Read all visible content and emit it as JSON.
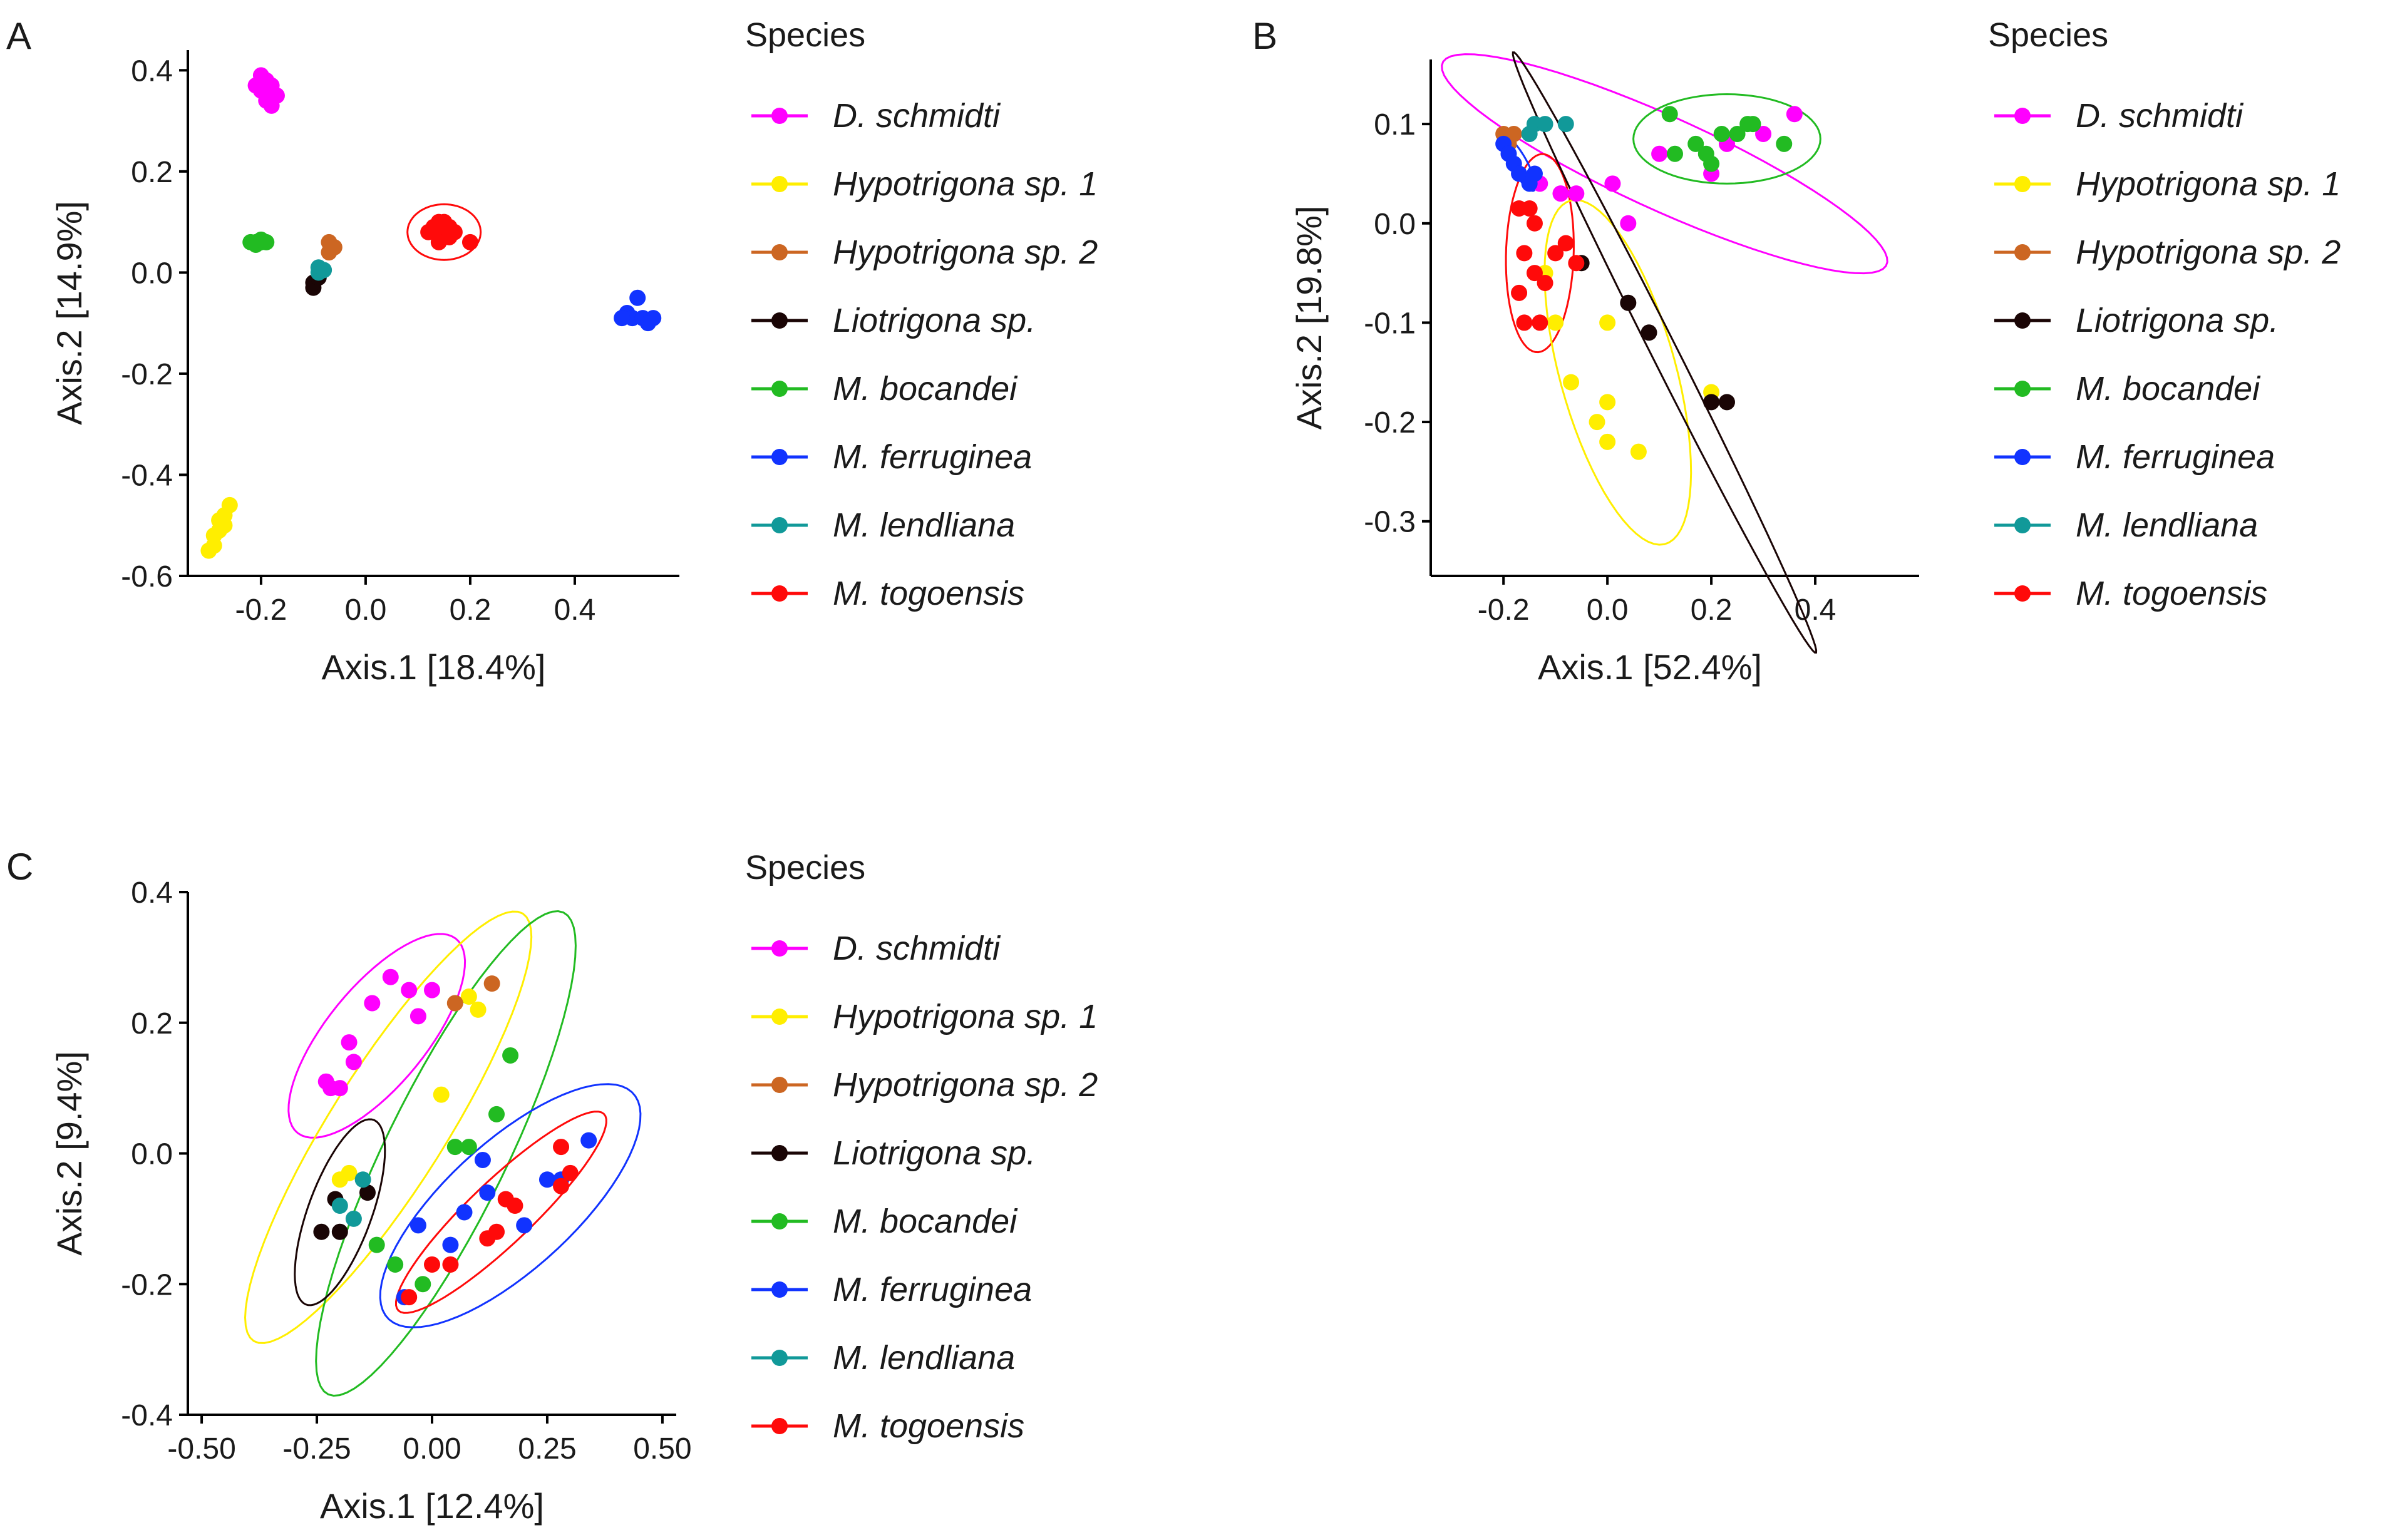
{
  "legend": {
    "title": "Species",
    "entries": [
      {
        "name": "D. schmidti",
        "color": "#ff00ff"
      },
      {
        "name": "Hypotrigona sp. 1",
        "color": "#ffee00"
      },
      {
        "name": "Hypotrigona sp. 2",
        "color": "#cc6622"
      },
      {
        "name": "Liotrigona sp.",
        "color": "#1a0505"
      },
      {
        "name": "M. bocandei",
        "color": "#22bb22"
      },
      {
        "name": "M. ferruginea",
        "color": "#1133ff"
      },
      {
        "name": "M. lendliana",
        "color": "#119999"
      },
      {
        "name": "M. togoensis",
        "color": "#ff0a0a"
      }
    ]
  },
  "chart_data": [
    {
      "panel": "A",
      "type": "scatter",
      "xlabel": "Axis.1   [18.4%]",
      "ylabel": "Axis.2   [14.9%]",
      "xlim": [
        -0.34,
        0.6
      ],
      "ylim": [
        -0.6,
        0.44
      ],
      "xticks": [
        "-0.2",
        "0.0",
        "0.2",
        "0.4"
      ],
      "xtick_values": [
        -0.2,
        0.0,
        0.2,
        0.4
      ],
      "yticks": [
        "-0.6",
        "-0.4",
        "-0.2",
        "0.0",
        "0.2",
        "0.4"
      ],
      "ytick_values": [
        -0.6,
        -0.4,
        -0.2,
        0.0,
        0.2,
        0.4
      ],
      "series": [
        {
          "name": "D. schmidti",
          "points": [
            [
              -0.2,
              0.39
            ],
            [
              -0.19,
              0.38
            ],
            [
              -0.21,
              0.37
            ],
            [
              -0.18,
              0.37
            ],
            [
              -0.19,
              0.36
            ],
            [
              -0.2,
              0.36
            ],
            [
              -0.18,
              0.35
            ],
            [
              -0.19,
              0.34
            ],
            [
              -0.17,
              0.35
            ],
            [
              -0.18,
              0.33
            ]
          ]
        },
        {
          "name": "Hypotrigona sp. 1",
          "points": [
            [
              -0.26,
              -0.46
            ],
            [
              -0.27,
              -0.48
            ],
            [
              -0.27,
              -0.5
            ],
            [
              -0.28,
              -0.51
            ],
            [
              -0.29,
              -0.52
            ],
            [
              -0.29,
              -0.54
            ],
            [
              -0.28,
              -0.49
            ],
            [
              -0.3,
              -0.55
            ]
          ]
        },
        {
          "name": "Hypotrigona sp. 2",
          "points": [
            [
              -0.07,
              0.06
            ],
            [
              -0.07,
              0.04
            ],
            [
              -0.06,
              0.05
            ]
          ]
        },
        {
          "name": "Liotrigona sp.",
          "points": [
            [
              -0.1,
              -0.03
            ],
            [
              -0.1,
              -0.02
            ],
            [
              -0.09,
              -0.01
            ]
          ]
        },
        {
          "name": "M. bocandei",
          "points": [
            [
              -0.22,
              0.06
            ],
            [
              -0.21,
              0.06
            ],
            [
              -0.2,
              0.06
            ],
            [
              -0.19,
              0.06
            ],
            [
              -0.21,
              0.055
            ],
            [
              -0.2,
              0.065
            ]
          ]
        },
        {
          "name": "M. ferruginea",
          "points": [
            [
              0.52,
              -0.05
            ],
            [
              0.5,
              -0.08
            ],
            [
              0.51,
              -0.09
            ],
            [
              0.53,
              -0.09
            ],
            [
              0.55,
              -0.09
            ],
            [
              0.54,
              -0.1
            ],
            [
              0.49,
              -0.09
            ]
          ]
        },
        {
          "name": "M. lendliana",
          "points": [
            [
              -0.09,
              0.0
            ],
            [
              -0.09,
              0.01
            ],
            [
              -0.08,
              0.005
            ]
          ]
        },
        {
          "name": "M. togoensis",
          "points": [
            [
              0.13,
              0.09
            ],
            [
              0.14,
              0.1
            ],
            [
              0.15,
              0.08
            ],
            [
              0.16,
              0.07
            ],
            [
              0.14,
              0.06
            ],
            [
              0.17,
              0.08
            ],
            [
              0.2,
              0.06
            ],
            [
              0.12,
              0.08
            ],
            [
              0.15,
              0.1
            ],
            [
              0.16,
              0.09
            ]
          ]
        }
      ],
      "ellipses": [
        {
          "series": "M. togoensis",
          "cx": 0.15,
          "cy": 0.08,
          "rx": 0.07,
          "ry": 0.055,
          "angle": 0
        }
      ]
    },
    {
      "panel": "B",
      "type": "scatter",
      "xlabel": "Axis.1   [52.4%]",
      "ylabel": "Axis.2   [19.8%]",
      "xlim": [
        -0.34,
        0.6
      ],
      "ylim": [
        -0.355,
        0.165
      ],
      "xticks": [
        "-0.2",
        "0.0",
        "0.2",
        "0.4"
      ],
      "xtick_values": [
        -0.2,
        0.0,
        0.2,
        0.4
      ],
      "yticks": [
        "-0.3",
        "-0.2",
        "-0.1",
        "0.0",
        "0.1"
      ],
      "ytick_values": [
        -0.3,
        -0.2,
        -0.1,
        0.0,
        0.1
      ],
      "series": [
        {
          "name": "D. schmidti",
          "points": [
            [
              -0.13,
              0.04
            ],
            [
              -0.09,
              0.03
            ],
            [
              -0.06,
              0.03
            ],
            [
              0.01,
              0.04
            ],
            [
              0.04,
              0.0
            ],
            [
              0.1,
              0.07
            ],
            [
              0.2,
              0.05
            ],
            [
              0.23,
              0.08
            ],
            [
              0.3,
              0.09
            ],
            [
              0.36,
              0.11
            ]
          ]
        },
        {
          "name": "Hypotrigona sp. 1",
          "points": [
            [
              -0.12,
              -0.05
            ],
            [
              -0.1,
              -0.1
            ],
            [
              -0.07,
              -0.16
            ],
            [
              -0.02,
              -0.2
            ],
            [
              0.0,
              -0.22
            ],
            [
              0.0,
              -0.18
            ],
            [
              0.06,
              -0.23
            ],
            [
              0.0,
              -0.1
            ],
            [
              0.2,
              -0.17
            ]
          ]
        },
        {
          "name": "Hypotrigona sp. 2",
          "points": [
            [
              -0.2,
              0.09
            ],
            [
              -0.18,
              0.09
            ],
            [
              -0.19,
              0.08
            ]
          ]
        },
        {
          "name": "Liotrigona sp.",
          "points": [
            [
              0.04,
              -0.08
            ],
            [
              0.08,
              -0.11
            ],
            [
              0.2,
              -0.18
            ],
            [
              0.23,
              -0.18
            ],
            [
              -0.05,
              -0.04
            ]
          ]
        },
        {
          "name": "M. bocandei",
          "points": [
            [
              0.12,
              0.11
            ],
            [
              0.13,
              0.07
            ],
            [
              0.17,
              0.08
            ],
            [
              0.19,
              0.07
            ],
            [
              0.2,
              0.06
            ],
            [
              0.22,
              0.09
            ],
            [
              0.25,
              0.09
            ],
            [
              0.27,
              0.1
            ],
            [
              0.28,
              0.1
            ],
            [
              0.34,
              0.08
            ]
          ]
        },
        {
          "name": "M. ferruginea",
          "points": [
            [
              -0.2,
              0.08
            ],
            [
              -0.19,
              0.07
            ],
            [
              -0.18,
              0.06
            ],
            [
              -0.17,
              0.05
            ],
            [
              -0.15,
              0.04
            ],
            [
              -0.14,
              0.05
            ]
          ]
        },
        {
          "name": "M. lendliana",
          "points": [
            [
              -0.14,
              0.1
            ],
            [
              -0.12,
              0.1
            ],
            [
              -0.08,
              0.1
            ],
            [
              -0.15,
              0.09
            ]
          ]
        },
        {
          "name": "M. togoensis",
          "points": [
            [
              -0.17,
              0.015
            ],
            [
              -0.15,
              0.015
            ],
            [
              -0.14,
              0.0
            ],
            [
              -0.16,
              -0.03
            ],
            [
              -0.14,
              -0.05
            ],
            [
              -0.17,
              -0.07
            ],
            [
              -0.16,
              -0.1
            ],
            [
              -0.13,
              -0.1
            ],
            [
              -0.08,
              -0.02
            ],
            [
              -0.06,
              -0.04
            ],
            [
              -0.1,
              -0.03
            ],
            [
              -0.12,
              -0.06
            ]
          ]
        }
      ],
      "ellipses": [
        {
          "series": "D. schmidti",
          "cx": 0.11,
          "cy": 0.06,
          "rx": 0.44,
          "ry": 0.05,
          "angle": -13
        },
        {
          "series": "M. bocandei",
          "cx": 0.23,
          "cy": 0.085,
          "rx": 0.18,
          "ry": 0.045,
          "angle": 0
        },
        {
          "series": "M. togoensis",
          "cx": -0.13,
          "cy": -0.03,
          "rx": 0.065,
          "ry": 0.1,
          "angle": -5
        },
        {
          "series": "Hypotrigona sp. 1",
          "cx": 0.02,
          "cy": -0.15,
          "rx": 0.2,
          "ry": 0.1,
          "angle": -55
        },
        {
          "series": "Liotrigona sp.",
          "cx": 0.11,
          "cy": -0.13,
          "rx": 0.42,
          "ry": 0.02,
          "angle": -46
        },
        {
          "series": "M. ferruginea",
          "cx": -0.17,
          "cy": 0.06,
          "rx": 0.04,
          "ry": 0.012,
          "angle": -40
        }
      ]
    },
    {
      "panel": "C",
      "type": "scatter",
      "xlabel": "Axis.1   [12.4%]",
      "ylabel": "Axis.2   [9.4%]",
      "xlim": [
        -0.53,
        0.53
      ],
      "ylim": [
        -0.4,
        0.4
      ],
      "xticks": [
        "-0.50",
        "-0.25",
        "0.00",
        "0.25",
        "0.50"
      ],
      "xtick_values": [
        -0.5,
        -0.25,
        0.0,
        0.25,
        0.5
      ],
      "yticks": [
        "-0.4",
        "-0.2",
        "0.0",
        "0.2",
        "0.4"
      ],
      "ytick_values": [
        -0.4,
        -0.2,
        0.0,
        0.2,
        0.4
      ],
      "series": [
        {
          "name": "D. schmidti",
          "points": [
            [
              -0.09,
              0.27
            ],
            [
              -0.05,
              0.25
            ],
            [
              0.0,
              0.25
            ],
            [
              -0.03,
              0.21
            ],
            [
              -0.13,
              0.23
            ],
            [
              -0.18,
              0.17
            ],
            [
              -0.17,
              0.14
            ],
            [
              -0.23,
              0.11
            ],
            [
              -0.2,
              0.1
            ],
            [
              -0.22,
              0.1
            ]
          ]
        },
        {
          "name": "Hypotrigona sp. 1",
          "points": [
            [
              0.1,
              0.22
            ],
            [
              0.08,
              0.24
            ],
            [
              0.02,
              0.09
            ],
            [
              -0.18,
              -0.03
            ],
            [
              -0.2,
              -0.04
            ]
          ]
        },
        {
          "name": "Hypotrigona sp. 2",
          "points": [
            [
              0.05,
              0.23
            ],
            [
              0.13,
              0.26
            ]
          ]
        },
        {
          "name": "Liotrigona sp.",
          "points": [
            [
              -0.24,
              -0.12
            ],
            [
              -0.2,
              -0.12
            ],
            [
              -0.14,
              -0.06
            ],
            [
              -0.21,
              -0.07
            ]
          ]
        },
        {
          "name": "M. bocandei",
          "points": [
            [
              0.17,
              0.15
            ],
            [
              0.14,
              0.06
            ],
            [
              0.05,
              0.01
            ],
            [
              0.08,
              0.01
            ],
            [
              -0.12,
              -0.14
            ],
            [
              -0.08,
              -0.17
            ],
            [
              -0.02,
              -0.2
            ]
          ]
        },
        {
          "name": "M. ferruginea",
          "points": [
            [
              0.11,
              -0.01
            ],
            [
              0.12,
              -0.06
            ],
            [
              0.2,
              -0.11
            ],
            [
              0.07,
              -0.09
            ],
            [
              0.04,
              -0.14
            ],
            [
              -0.03,
              -0.11
            ],
            [
              0.25,
              -0.04
            ],
            [
              0.28,
              -0.04
            ],
            [
              0.34,
              0.02
            ],
            [
              -0.06,
              -0.22
            ]
          ]
        },
        {
          "name": "M. lendliana",
          "points": [
            [
              -0.15,
              -0.04
            ],
            [
              -0.17,
              -0.1
            ],
            [
              -0.2,
              -0.08
            ]
          ]
        },
        {
          "name": "M. togoensis",
          "points": [
            [
              0.28,
              0.01
            ],
            [
              0.3,
              -0.03
            ],
            [
              0.16,
              -0.07
            ],
            [
              0.18,
              -0.08
            ],
            [
              0.14,
              -0.12
            ],
            [
              0.12,
              -0.13
            ],
            [
              0.04,
              -0.17
            ],
            [
              0.0,
              -0.17
            ],
            [
              0.28,
              -0.05
            ],
            [
              -0.05,
              -0.22
            ]
          ]
        }
      ],
      "ellipses": [
        {
          "series": "D. schmidti",
          "cx": -0.12,
          "cy": 0.18,
          "rx": 0.23,
          "ry": 0.09,
          "angle": 37
        },
        {
          "series": "Hypotrigona sp. 1",
          "cx": -0.095,
          "cy": 0.04,
          "rx": 0.44,
          "ry": 0.11,
          "angle": 47
        },
        {
          "series": "M. bocandei",
          "cx": 0.03,
          "cy": 0.0,
          "rx": 0.45,
          "ry": 0.12,
          "angle": 54
        },
        {
          "series": "Liotrigona sp.",
          "cx": -0.2,
          "cy": -0.09,
          "rx": 0.16,
          "ry": 0.065,
          "angle": 60
        },
        {
          "series": "M. ferruginea",
          "cx": 0.17,
          "cy": -0.08,
          "rx": 0.32,
          "ry": 0.11,
          "angle": 30
        },
        {
          "series": "M. togoensis",
          "cx": 0.15,
          "cy": -0.09,
          "rx": 0.27,
          "ry": 0.055,
          "angle": 33
        }
      ]
    }
  ]
}
